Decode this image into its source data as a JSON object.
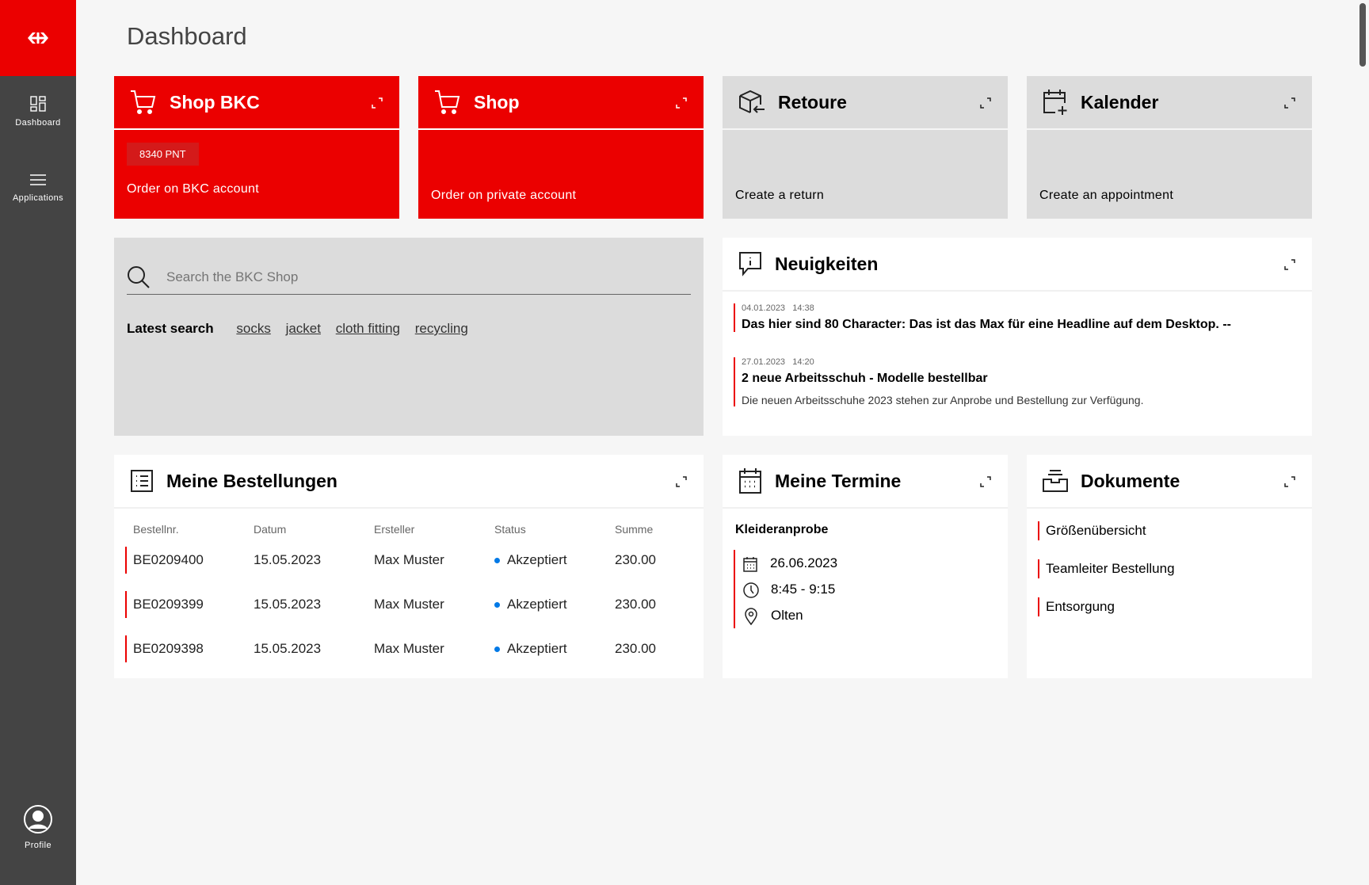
{
  "sidebar": {
    "items": [
      {
        "label": "Dashboard",
        "icon": "dashboard-icon"
      },
      {
        "label": "Applications",
        "icon": "menu-icon"
      }
    ],
    "profile": "Profile"
  },
  "page_title": "Dashboard",
  "tiles": [
    {
      "title": "Shop BKC",
      "badge": "8340 PNT",
      "subtitle": "Order on BKC account",
      "icon": "cart-icon"
    },
    {
      "title": "Shop",
      "subtitle": "Order on private account",
      "icon": "cart-icon"
    },
    {
      "title": "Retoure",
      "subtitle": "Create a return",
      "icon": "box-return-icon"
    },
    {
      "title": "Kalender",
      "subtitle": "Create an appointment",
      "icon": "calendar-add-icon"
    }
  ],
  "search": {
    "placeholder": "Search the BKC Shop",
    "latest_label": "Latest search",
    "latest": [
      "socks",
      "jacket",
      "cloth fitting",
      "recycling"
    ]
  },
  "news": {
    "title": "Neuigkeiten",
    "items": [
      {
        "date": "04.01.2023",
        "time": "14:38",
        "headline": "Das hier sind 80 Character: Das ist das Max für eine Headline auf dem Desktop. --"
      },
      {
        "date": "27.01.2023",
        "time": "14:20",
        "headline": "2 neue Arbeitsschuh - Modelle bestellbar",
        "text": "Die neuen Arbeitsschuhe 2023 stehen zur Anprobe und Bestellung zur Verfügung."
      }
    ]
  },
  "orders": {
    "title": "Meine Bestellungen",
    "columns": [
      "Bestellnr.",
      "Datum",
      "Ersteller",
      "Status",
      "Summe"
    ],
    "rows": [
      [
        "BE0209400",
        "15.05.2023",
        "Max Muster",
        "Akzeptiert",
        "230.00"
      ],
      [
        "BE0209399",
        "15.05.2023",
        "Max Muster",
        "Akzeptiert",
        "230.00"
      ],
      [
        "BE0209398",
        "15.05.2023",
        "Max Muster",
        "Akzeptiert",
        "230.00"
      ]
    ],
    "status_color": "#0079e6"
  },
  "appointments": {
    "title": "Meine Termine",
    "name": "Kleideranprobe",
    "date": "26.06.2023",
    "time": "8:45 - 9:15",
    "place": "Olten"
  },
  "documents": {
    "title": "Dokumente",
    "items": [
      "Größenübersicht",
      "Teamleiter Bestellung",
      "Entsorgung"
    ]
  },
  "colors": {
    "brand": "#eb0000",
    "sidebar": "#444444"
  }
}
